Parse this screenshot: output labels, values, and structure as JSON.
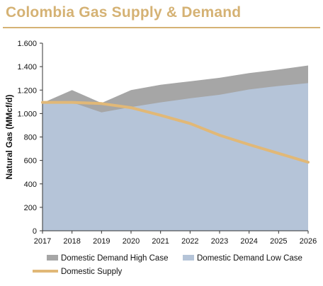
{
  "page": {
    "title": "Colombia Gas Supply & Demand"
  },
  "chart_data": {
    "type": "area",
    "ylabel": "Natural Gas (MMcf/d)",
    "ylim": [
      0,
      1600
    ],
    "ytick_values": [
      0,
      200,
      400,
      600,
      800,
      1000,
      1200,
      1400,
      1600
    ],
    "ytick_labels": [
      "0",
      "200",
      "400",
      "600",
      "800",
      "1.000",
      "1.200",
      "1.400",
      "1.600"
    ],
    "x": [
      "2017",
      "2018",
      "2019",
      "2020",
      "2021",
      "2022",
      "2023",
      "2024",
      "2025",
      "2026"
    ],
    "grid": false,
    "legend_position": "bottom",
    "series": [
      {
        "name": "Domestic Demand High Case",
        "kind": "area",
        "color": "#a6a6a6",
        "values": [
          1090,
          1200,
          1090,
          1200,
          1245,
          1275,
          1305,
          1345,
          1375,
          1410
        ]
      },
      {
        "name": "Domestic Demand Low Case",
        "kind": "area",
        "color": "#b5c4d8",
        "values": [
          1090,
          1095,
          1010,
          1055,
          1095,
          1130,
          1160,
          1205,
          1235,
          1260
        ]
      },
      {
        "name": "Domestic Supply",
        "kind": "line",
        "color": "#e1b877",
        "values": [
          1095,
          1095,
          1085,
          1050,
          985,
          915,
          815,
          735,
          660,
          585
        ]
      }
    ]
  }
}
